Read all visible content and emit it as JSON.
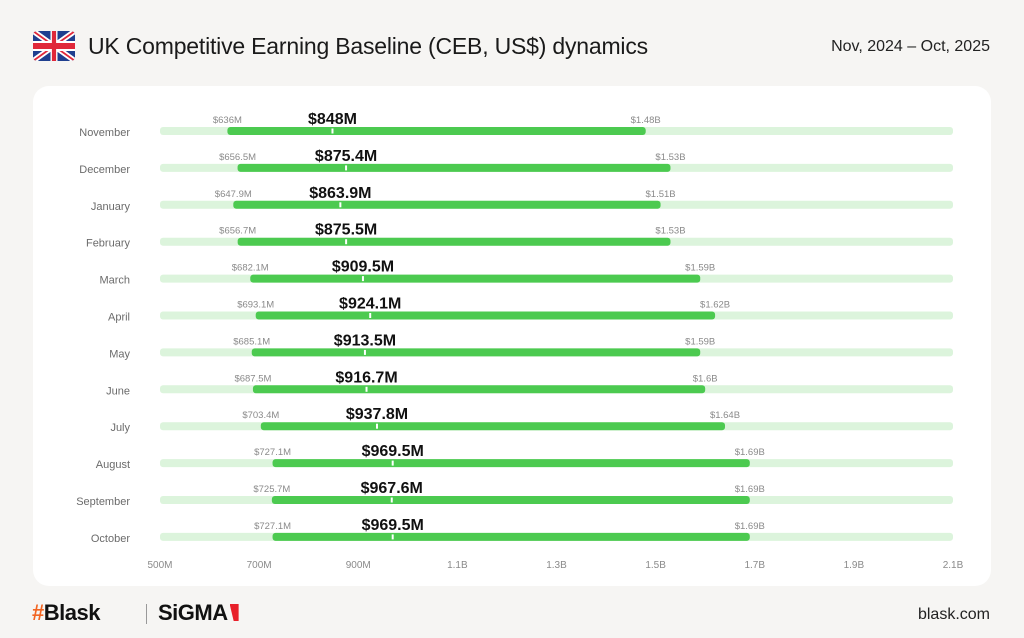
{
  "header": {
    "title": "UK Competitive Earning Baseline (CEB, US$) dynamics",
    "date_range": "Nov, 2024 – Oct, 2025",
    "flag_icon": "uk-flag-icon"
  },
  "footer": {
    "brand_primary_hash": "#",
    "brand_primary": "Blask",
    "brand_secondary": "SiGMA",
    "site": "blask.com"
  },
  "colors": {
    "bar_range": "#4cca50",
    "bar_track": "#dcf4dc",
    "label_muted": "#8a8a8a",
    "label_value": "#111111",
    "category_label": "#6b6b6b"
  },
  "chart_data": {
    "type": "bar",
    "subtype": "floating-range-with-midpoint",
    "title": "UK Competitive Earning Baseline (CEB, US$) dynamics",
    "xlabel": "",
    "ylabel": "",
    "xlim": [
      500,
      2100
    ],
    "units": "million US$",
    "x_ticks": [
      500,
      700,
      900,
      1100,
      1300,
      1500,
      1700,
      1900,
      2100
    ],
    "x_tick_labels": [
      "500M",
      "700M",
      "900M",
      "1.1B",
      "1.3B",
      "1.5B",
      "1.7B",
      "1.9B",
      "2.1B"
    ],
    "grid": false,
    "legend": "none",
    "categories": [
      "November",
      "December",
      "January",
      "February",
      "March",
      "April",
      "May",
      "June",
      "July",
      "August",
      "September",
      "October"
    ],
    "series": [
      {
        "name": "low",
        "values": [
          636,
          656.5,
          647.9,
          656.7,
          682.1,
          693.1,
          685.1,
          687.5,
          703.4,
          727.1,
          725.7,
          727.1
        ],
        "labels": [
          "$636M",
          "$656.5M",
          "$647.9M",
          "$656.7M",
          "$682.1M",
          "$693.1M",
          "$685.1M",
          "$687.5M",
          "$703.4M",
          "$727.1M",
          "$725.7M",
          "$727.1M"
        ]
      },
      {
        "name": "estimate",
        "values": [
          848,
          875.4,
          863.9,
          875.5,
          909.5,
          924.1,
          913.5,
          916.7,
          937.8,
          969.5,
          967.6,
          969.5
        ],
        "labels": [
          "$848M",
          "$875.4M",
          "$863.9M",
          "$875.5M",
          "$909.5M",
          "$924.1M",
          "$913.5M",
          "$916.7M",
          "$937.8M",
          "$969.5M",
          "$967.6M",
          "$969.5M"
        ]
      },
      {
        "name": "high",
        "values": [
          1480,
          1530,
          1510,
          1530,
          1590,
          1620,
          1590,
          1600,
          1640,
          1690,
          1690,
          1690
        ],
        "labels": [
          "$1.48B",
          "$1.53B",
          "$1.51B",
          "$1.53B",
          "$1.59B",
          "$1.62B",
          "$1.59B",
          "$1.6B",
          "$1.64B",
          "$1.69B",
          "$1.69B",
          "$1.69B"
        ]
      }
    ]
  }
}
